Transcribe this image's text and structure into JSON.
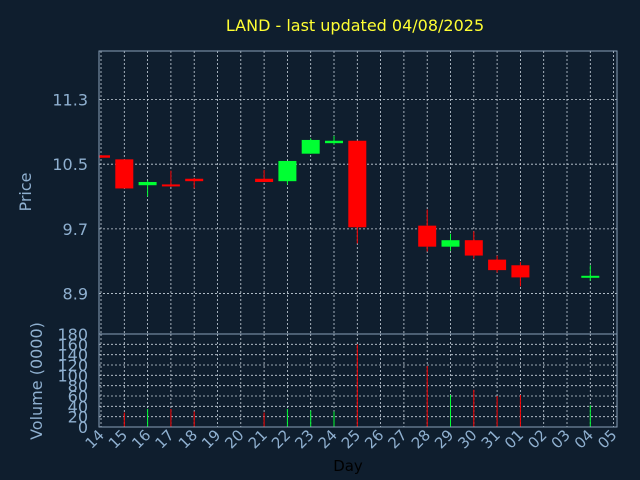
{
  "colors": {
    "background": "#0f1e2e",
    "frame": "#8aa0b8",
    "grid": "#c8d2dc",
    "title": "#ffff33",
    "axis_text": "#8fb0d0",
    "day_label": "#000000",
    "up": "#00ff33",
    "down": "#ff0000"
  },
  "chart_data": {
    "type": "candlestick",
    "title": "LAND - last updated 04/08/2025",
    "xlabel": "Day",
    "price_panel": {
      "ylabel": "Price",
      "ylim": [
        8.4,
        11.9
      ],
      "yticks": [
        "11.3",
        "10.5",
        "9.7",
        "8.9"
      ],
      "grid": true
    },
    "volume_panel": {
      "ylabel": "Volume (0000)",
      "ylim": [
        0,
        180
      ],
      "yticks": [
        "0",
        "20",
        "40",
        "60",
        "80",
        "100",
        "120",
        "140",
        "160",
        "180"
      ],
      "grid": true
    },
    "x_tick_labels": [
      "14",
      "15",
      "16",
      "17",
      "18",
      "19",
      "20",
      "21",
      "22",
      "23",
      "24",
      "25",
      "26",
      "27",
      "28",
      "29",
      "30",
      "31",
      "01",
      "02",
      "03",
      "04",
      "05"
    ],
    "candles": [
      {
        "day": "14",
        "open": 10.61,
        "close": 10.58,
        "high": 10.61,
        "low": 10.58,
        "volume": 0
      },
      {
        "day": "15",
        "open": 10.56,
        "close": 10.2,
        "high": 10.56,
        "low": 10.2,
        "volume": 28
      },
      {
        "day": "16",
        "open": 10.24,
        "close": 10.28,
        "high": 10.3,
        "low": 10.1,
        "volume": 35
      },
      {
        "day": "17",
        "open": 10.25,
        "close": 10.23,
        "high": 10.42,
        "low": 10.22,
        "volume": 35
      },
      {
        "day": "18",
        "open": 10.32,
        "close": 10.29,
        "high": 10.33,
        "low": 10.2,
        "volume": 30
      },
      {
        "day": "21",
        "open": 10.32,
        "close": 10.28,
        "high": 10.43,
        "low": 10.28,
        "volume": 28
      },
      {
        "day": "22",
        "open": 10.29,
        "close": 10.54,
        "high": 10.54,
        "low": 10.25,
        "volume": 35
      },
      {
        "day": "23",
        "open": 10.63,
        "close": 10.8,
        "high": 10.82,
        "low": 10.63,
        "volume": 32
      },
      {
        "day": "24",
        "open": 10.76,
        "close": 10.79,
        "high": 10.85,
        "low": 10.74,
        "volume": 30
      },
      {
        "day": "25",
        "open": 10.79,
        "close": 9.72,
        "high": 10.79,
        "low": 9.52,
        "volume": 160
      },
      {
        "day": "28",
        "open": 9.74,
        "close": 9.48,
        "high": 9.94,
        "low": 9.42,
        "volume": 118
      },
      {
        "day": "29",
        "open": 9.48,
        "close": 9.56,
        "high": 9.64,
        "low": 9.43,
        "volume": 62
      },
      {
        "day": "30",
        "open": 9.56,
        "close": 9.37,
        "high": 9.67,
        "low": 9.33,
        "volume": 72
      },
      {
        "day": "31",
        "open": 9.32,
        "close": 9.19,
        "high": 9.37,
        "low": 9.16,
        "volume": 60
      },
      {
        "day": "01",
        "open": 9.25,
        "close": 9.1,
        "high": 9.29,
        "low": 8.99,
        "volume": 62
      },
      {
        "day": "04",
        "open": 9.11,
        "close": 9.12,
        "high": 9.25,
        "low": 9.06,
        "volume": 42
      }
    ]
  }
}
